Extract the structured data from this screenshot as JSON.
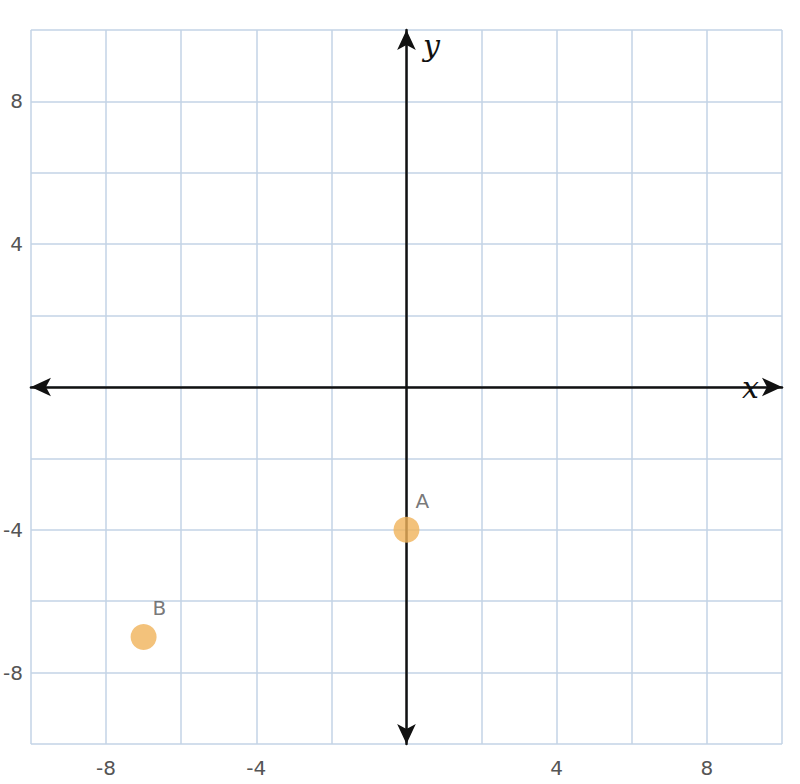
{
  "chart_data": {
    "type": "scatter",
    "x_label": "x",
    "y_label": "y",
    "points": [
      {
        "label": "A",
        "x": 0,
        "y": -4
      },
      {
        "label": "B",
        "x": -7,
        "y": -7
      }
    ],
    "color": "#f0b35a",
    "xlim": [
      -10,
      10
    ],
    "ylim": [
      -10,
      10
    ],
    "xticks": [
      -8,
      -4,
      4,
      8
    ],
    "yticks": [
      -8,
      -4,
      4,
      8
    ],
    "grid": true
  }
}
